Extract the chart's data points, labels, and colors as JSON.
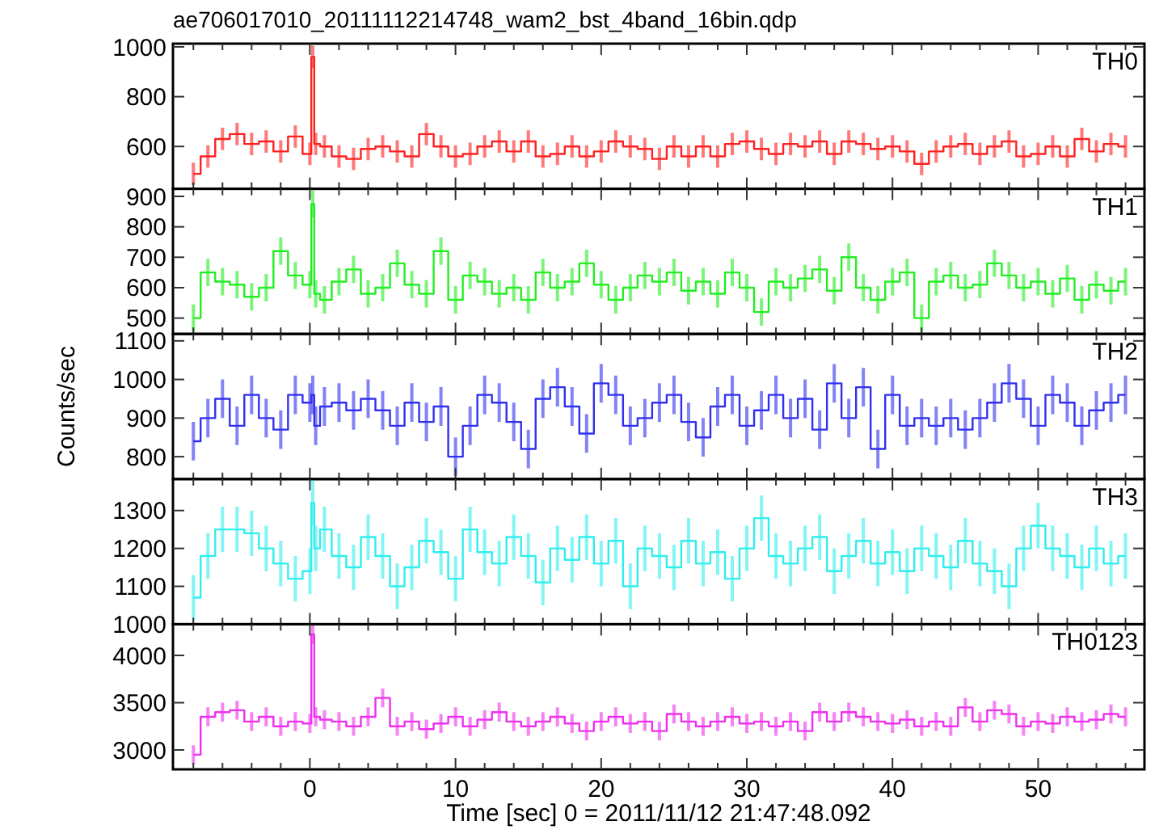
{
  "chart_data": [
    {
      "type": "step",
      "title": "ae706017010_20111112214748_wam2_bst_4band_16bin.qdp",
      "tick_labels": "y",
      "xlim": [
        -9.4,
        57.3
      ],
      "ylim": [
        430,
        1013
      ],
      "yticks": [
        600,
        800,
        1000
      ],
      "xticks": [
        {
          "value": -8,
          "label": null
        },
        {
          "value": -6,
          "label": null
        },
        {
          "value": -4,
          "label": null
        },
        {
          "value": -2,
          "label": null
        },
        0,
        {
          "value": 2,
          "label": null
        },
        {
          "value": 4,
          "label": null
        },
        {
          "value": 6,
          "label": null
        },
        {
          "value": 8,
          "label": null
        },
        10,
        {
          "value": 12,
          "label": null
        },
        {
          "value": 14,
          "label": null
        },
        {
          "value": 16,
          "label": null
        },
        {
          "value": 18,
          "label": null
        },
        20,
        {
          "value": 22,
          "label": null
        },
        {
          "value": 24,
          "label": null
        },
        {
          "value": 26,
          "label": null
        },
        {
          "value": 28,
          "label": null
        },
        30,
        {
          "value": 32,
          "label": null
        },
        {
          "value": 34,
          "label": null
        },
        {
          "value": 36,
          "label": null
        },
        {
          "value": 38,
          "label": null
        },
        40,
        {
          "value": 42,
          "label": null
        },
        {
          "value": 44,
          "label": null
        },
        {
          "value": 46,
          "label": null
        },
        {
          "value": 48,
          "label": null
        },
        50,
        {
          "value": 52,
          "label": null
        },
        {
          "value": 54,
          "label": null
        },
        {
          "value": 56,
          "label": null
        }
      ],
      "x": [
        -8,
        -7,
        -6,
        -5,
        -4,
        -3,
        -2,
        -1,
        0,
        0.2,
        0.4,
        1,
        2,
        3,
        4,
        5,
        6,
        7,
        8,
        9,
        10,
        11,
        12,
        13,
        14,
        15,
        16,
        17,
        18,
        19,
        20,
        21,
        22,
        23,
        24,
        25,
        26,
        27,
        28,
        29,
        30,
        31,
        32,
        33,
        34,
        35,
        36,
        37,
        38,
        39,
        40,
        41,
        42,
        43,
        44,
        45,
        46,
        47,
        48,
        49,
        50,
        51,
        52,
        53,
        54,
        55,
        56
      ],
      "series": [
        {
          "name": "TH0",
          "color": "#ff2020",
          "values": [
            490,
            560,
            630,
            650,
            610,
            620,
            580,
            640,
            570,
            960,
            610,
            600,
            560,
            550,
            590,
            600,
            580,
            560,
            650,
            600,
            560,
            570,
            600,
            620,
            580,
            620,
            560,
            570,
            600,
            560,
            580,
            620,
            600,
            590,
            550,
            600,
            560,
            600,
            560,
            610,
            620,
            590,
            570,
            610,
            600,
            620,
            570,
            620,
            610,
            590,
            600,
            580,
            530,
            580,
            600,
            610,
            570,
            600,
            620,
            560,
            570,
            600,
            560,
            630,
            580,
            610,
            600
          ],
          "errors": [
            45,
            45,
            45,
            45,
            45,
            45,
            45,
            45,
            45,
            45,
            45,
            45,
            45,
            45,
            45,
            45,
            45,
            45,
            45,
            45,
            45,
            45,
            45,
            45,
            45,
            45,
            45,
            45,
            45,
            45,
            45,
            45,
            45,
            45,
            45,
            45,
            45,
            45,
            45,
            45,
            45,
            45,
            45,
            45,
            45,
            45,
            45,
            45,
            45,
            45,
            45,
            45,
            45,
            45,
            45,
            45,
            45,
            45,
            45,
            45,
            45,
            45,
            45,
            45,
            45,
            45,
            45
          ]
        }
      ]
    },
    {
      "type": "step",
      "tick_labels": "y",
      "xlim": [
        -9.4,
        57.3
      ],
      "ylim": [
        448,
        925
      ],
      "yticks": [
        500,
        600,
        700,
        800,
        900
      ],
      "xticks": [
        {
          "value": -8,
          "label": null
        },
        {
          "value": -6,
          "label": null
        },
        {
          "value": -4,
          "label": null
        },
        {
          "value": -2,
          "label": null
        },
        0,
        {
          "value": 2,
          "label": null
        },
        {
          "value": 4,
          "label": null
        },
        {
          "value": 6,
          "label": null
        },
        {
          "value": 8,
          "label": null
        },
        10,
        {
          "value": 12,
          "label": null
        },
        {
          "value": 14,
          "label": null
        },
        {
          "value": 16,
          "label": null
        },
        {
          "value": 18,
          "label": null
        },
        20,
        {
          "value": 22,
          "label": null
        },
        {
          "value": 24,
          "label": null
        },
        {
          "value": 26,
          "label": null
        },
        {
          "value": 28,
          "label": null
        },
        30,
        {
          "value": 32,
          "label": null
        },
        {
          "value": 34,
          "label": null
        },
        {
          "value": 36,
          "label": null
        },
        {
          "value": 38,
          "label": null
        },
        40,
        {
          "value": 42,
          "label": null
        },
        {
          "value": 44,
          "label": null
        },
        {
          "value": 46,
          "label": null
        },
        {
          "value": 48,
          "label": null
        },
        50,
        {
          "value": 52,
          "label": null
        },
        {
          "value": 54,
          "label": null
        },
        {
          "value": 56,
          "label": null
        }
      ],
      "x": [
        -8,
        -7,
        -6,
        -5,
        -4,
        -3,
        -2,
        -1,
        0,
        0.2,
        0.4,
        1,
        2,
        3,
        4,
        5,
        6,
        7,
        8,
        9,
        10,
        11,
        12,
        13,
        14,
        15,
        16,
        17,
        18,
        19,
        20,
        21,
        22,
        23,
        24,
        25,
        26,
        27,
        28,
        29,
        30,
        31,
        32,
        33,
        34,
        35,
        36,
        37,
        38,
        39,
        40,
        41,
        42,
        43,
        44,
        45,
        46,
        47,
        48,
        49,
        50,
        51,
        52,
        53,
        54,
        55,
        56
      ],
      "series": [
        {
          "name": "TH1",
          "color": "#22ee22",
          "values": [
            500,
            650,
            620,
            610,
            570,
            600,
            720,
            640,
            610,
            875,
            580,
            560,
            620,
            660,
            580,
            600,
            680,
            610,
            580,
            720,
            560,
            640,
            620,
            580,
            600,
            560,
            650,
            600,
            620,
            680,
            610,
            560,
            600,
            640,
            620,
            650,
            590,
            620,
            580,
            650,
            600,
            520,
            620,
            600,
            630,
            660,
            590,
            700,
            600,
            560,
            620,
            650,
            500,
            620,
            640,
            600,
            610,
            680,
            640,
            600,
            620,
            580,
            630,
            560,
            610,
            590,
            620
          ],
          "errors": [
            45,
            45,
            45,
            45,
            45,
            45,
            45,
            45,
            45,
            45,
            45,
            45,
            45,
            45,
            45,
            45,
            45,
            45,
            45,
            45,
            45,
            45,
            45,
            45,
            45,
            45,
            45,
            45,
            45,
            45,
            45,
            45,
            45,
            45,
            45,
            45,
            45,
            45,
            45,
            45,
            45,
            45,
            45,
            45,
            45,
            45,
            45,
            45,
            45,
            45,
            45,
            45,
            45,
            45,
            45,
            45,
            45,
            45,
            45,
            45,
            45,
            45,
            45,
            45,
            45,
            45,
            45
          ]
        }
      ]
    },
    {
      "type": "step",
      "tick_labels": "y",
      "ylabel": "Counts/sec",
      "xlim": [
        -9.4,
        57.3
      ],
      "ylim": [
        742,
        1118
      ],
      "yticks": [
        800,
        900,
        1000,
        1100
      ],
      "xticks": [
        {
          "value": -8,
          "label": null
        },
        {
          "value": -6,
          "label": null
        },
        {
          "value": -4,
          "label": null
        },
        {
          "value": -2,
          "label": null
        },
        0,
        {
          "value": 2,
          "label": null
        },
        {
          "value": 4,
          "label": null
        },
        {
          "value": 6,
          "label": null
        },
        {
          "value": 8,
          "label": null
        },
        10,
        {
          "value": 12,
          "label": null
        },
        {
          "value": 14,
          "label": null
        },
        {
          "value": 16,
          "label": null
        },
        {
          "value": 18,
          "label": null
        },
        20,
        {
          "value": 22,
          "label": null
        },
        {
          "value": 24,
          "label": null
        },
        {
          "value": 26,
          "label": null
        },
        {
          "value": 28,
          "label": null
        },
        30,
        {
          "value": 32,
          "label": null
        },
        {
          "value": 34,
          "label": null
        },
        {
          "value": 36,
          "label": null
        },
        {
          "value": 38,
          "label": null
        },
        40,
        {
          "value": 42,
          "label": null
        },
        {
          "value": 44,
          "label": null
        },
        {
          "value": 46,
          "label": null
        },
        {
          "value": 48,
          "label": null
        },
        50,
        {
          "value": 52,
          "label": null
        },
        {
          "value": 54,
          "label": null
        },
        {
          "value": 56,
          "label": null
        }
      ],
      "x": [
        -8,
        -7,
        -6,
        -5,
        -4,
        -3,
        -2,
        -1,
        0,
        0.2,
        0.4,
        1,
        2,
        3,
        4,
        5,
        6,
        7,
        8,
        9,
        10,
        11,
        12,
        13,
        14,
        15,
        16,
        17,
        18,
        19,
        20,
        21,
        22,
        23,
        24,
        25,
        26,
        27,
        28,
        29,
        30,
        31,
        32,
        33,
        34,
        35,
        36,
        37,
        38,
        39,
        40,
        41,
        42,
        43,
        44,
        45,
        46,
        47,
        48,
        49,
        50,
        51,
        52,
        53,
        54,
        55,
        56
      ],
      "series": [
        {
          "name": "TH2",
          "color": "#3030ee",
          "values": [
            840,
            900,
            950,
            880,
            960,
            900,
            870,
            960,
            940,
            960,
            880,
            930,
            940,
            920,
            950,
            920,
            880,
            940,
            890,
            930,
            800,
            880,
            960,
            940,
            890,
            820,
            950,
            980,
            930,
            860,
            990,
            960,
            880,
            900,
            940,
            960,
            890,
            850,
            930,
            960,
            880,
            920,
            960,
            900,
            950,
            870,
            990,
            900,
            980,
            820,
            960,
            880,
            900,
            880,
            900,
            870,
            900,
            940,
            990,
            950,
            880,
            960,
            940,
            880,
            920,
            940,
            960
          ],
          "errors": [
            50,
            50,
            50,
            50,
            50,
            50,
            50,
            50,
            50,
            50,
            50,
            50,
            50,
            50,
            50,
            50,
            50,
            50,
            50,
            50,
            50,
            50,
            50,
            50,
            50,
            50,
            50,
            50,
            50,
            50,
            50,
            50,
            50,
            50,
            50,
            50,
            50,
            50,
            50,
            50,
            50,
            50,
            50,
            50,
            50,
            50,
            50,
            50,
            50,
            50,
            50,
            50,
            50,
            50,
            50,
            50,
            50,
            50,
            50,
            50,
            50,
            50,
            50,
            50,
            50,
            50,
            50
          ]
        }
      ]
    },
    {
      "type": "step",
      "tick_labels": "y",
      "xlim": [
        -9.4,
        57.3
      ],
      "ylim": [
        1000,
        1383
      ],
      "yticks": [
        1000,
        1100,
        1200,
        1300
      ],
      "xticks": [
        {
          "value": -8,
          "label": null
        },
        {
          "value": -6,
          "label": null
        },
        {
          "value": -4,
          "label": null
        },
        {
          "value": -2,
          "label": null
        },
        0,
        {
          "value": 2,
          "label": null
        },
        {
          "value": 4,
          "label": null
        },
        {
          "value": 6,
          "label": null
        },
        {
          "value": 8,
          "label": null
        },
        10,
        {
          "value": 12,
          "label": null
        },
        {
          "value": 14,
          "label": null
        },
        {
          "value": 16,
          "label": null
        },
        {
          "value": 18,
          "label": null
        },
        20,
        {
          "value": 22,
          "label": null
        },
        {
          "value": 24,
          "label": null
        },
        {
          "value": 26,
          "label": null
        },
        {
          "value": 28,
          "label": null
        },
        30,
        {
          "value": 32,
          "label": null
        },
        {
          "value": 34,
          "label": null
        },
        {
          "value": 36,
          "label": null
        },
        {
          "value": 38,
          "label": null
        },
        40,
        {
          "value": 42,
          "label": null
        },
        {
          "value": 44,
          "label": null
        },
        {
          "value": 46,
          "label": null
        },
        {
          "value": 48,
          "label": null
        },
        50,
        {
          "value": 52,
          "label": null
        },
        {
          "value": 54,
          "label": null
        },
        {
          "value": 56,
          "label": null
        }
      ],
      "x": [
        -8,
        -7,
        -6,
        -5,
        -4,
        -3,
        -2,
        -1,
        0,
        0.2,
        0.4,
        1,
        2,
        3,
        4,
        5,
        6,
        7,
        8,
        9,
        10,
        11,
        12,
        13,
        14,
        15,
        16,
        17,
        18,
        19,
        20,
        21,
        22,
        23,
        24,
        25,
        26,
        27,
        28,
        29,
        30,
        31,
        32,
        33,
        34,
        35,
        36,
        37,
        38,
        39,
        40,
        41,
        42,
        43,
        44,
        45,
        46,
        47,
        48,
        49,
        50,
        51,
        52,
        53,
        54,
        55,
        56
      ],
      "series": [
        {
          "name": "TH3",
          "color": "#30eeee",
          "values": [
            1070,
            1180,
            1250,
            1250,
            1240,
            1200,
            1160,
            1120,
            1140,
            1320,
            1200,
            1250,
            1180,
            1150,
            1230,
            1180,
            1100,
            1150,
            1220,
            1190,
            1120,
            1250,
            1190,
            1160,
            1230,
            1180,
            1110,
            1200,
            1170,
            1230,
            1160,
            1220,
            1100,
            1200,
            1180,
            1150,
            1220,
            1160,
            1190,
            1120,
            1200,
            1280,
            1180,
            1160,
            1200,
            1230,
            1140,
            1180,
            1220,
            1160,
            1190,
            1140,
            1200,
            1180,
            1150,
            1220,
            1160,
            1140,
            1100,
            1200,
            1260,
            1200,
            1180,
            1150,
            1200,
            1160,
            1180
          ],
          "errors": [
            60,
            60,
            60,
            60,
            60,
            60,
            60,
            60,
            60,
            60,
            60,
            60,
            60,
            60,
            60,
            60,
            60,
            60,
            60,
            60,
            60,
            60,
            60,
            60,
            60,
            60,
            60,
            60,
            60,
            60,
            60,
            60,
            60,
            60,
            60,
            60,
            60,
            60,
            60,
            60,
            60,
            60,
            60,
            60,
            60,
            60,
            60,
            60,
            60,
            60,
            60,
            60,
            60,
            60,
            60,
            60,
            60,
            60,
            60,
            60,
            60,
            60,
            60,
            60,
            60,
            60,
            60
          ]
        }
      ]
    },
    {
      "type": "step",
      "xlabel": "Time [sec] 0 = 2011/11/12 21:47:48.092",
      "xlim": [
        -9.4,
        57.3
      ],
      "ylim": [
        2795,
        4330
      ],
      "yticks": [
        3000,
        3500,
        4000
      ],
      "xticks": [
        {
          "value": -8,
          "label": null
        },
        {
          "value": -6,
          "label": null
        },
        {
          "value": -4,
          "label": null
        },
        {
          "value": -2,
          "label": null
        },
        0,
        {
          "value": 2,
          "label": null
        },
        {
          "value": 4,
          "label": null
        },
        {
          "value": 6,
          "label": null
        },
        {
          "value": 8,
          "label": null
        },
        10,
        {
          "value": 12,
          "label": null
        },
        {
          "value": 14,
          "label": null
        },
        {
          "value": 16,
          "label": null
        },
        {
          "value": 18,
          "label": null
        },
        20,
        {
          "value": 22,
          "label": null
        },
        {
          "value": 24,
          "label": null
        },
        {
          "value": 26,
          "label": null
        },
        {
          "value": 28,
          "label": null
        },
        30,
        {
          "value": 32,
          "label": null
        },
        {
          "value": 34,
          "label": null
        },
        {
          "value": 36,
          "label": null
        },
        {
          "value": 38,
          "label": null
        },
        40,
        {
          "value": 42,
          "label": null
        },
        {
          "value": 44,
          "label": null
        },
        {
          "value": 46,
          "label": null
        },
        {
          "value": 48,
          "label": null
        },
        50,
        {
          "value": 52,
          "label": null
        },
        {
          "value": 54,
          "label": null
        },
        {
          "value": 56,
          "label": null
        }
      ],
      "x": [
        -8,
        -7,
        -6,
        -5,
        -4,
        -3,
        -2,
        -1,
        0,
        0.2,
        0.4,
        1,
        2,
        3,
        4,
        5,
        6,
        7,
        8,
        9,
        10,
        11,
        12,
        13,
        14,
        15,
        16,
        17,
        18,
        19,
        20,
        21,
        22,
        23,
        24,
        25,
        26,
        27,
        28,
        29,
        30,
        31,
        32,
        33,
        34,
        35,
        36,
        37,
        38,
        39,
        40,
        41,
        42,
        43,
        44,
        45,
        46,
        47,
        48,
        49,
        50,
        51,
        52,
        53,
        54,
        55,
        56
      ],
      "series": [
        {
          "name": "TH0123",
          "color": "#ee30ee",
          "values": [
            2950,
            3350,
            3400,
            3420,
            3300,
            3350,
            3250,
            3300,
            3280,
            4220,
            3350,
            3320,
            3300,
            3250,
            3350,
            3550,
            3250,
            3300,
            3220,
            3280,
            3350,
            3250,
            3320,
            3400,
            3300,
            3250,
            3300,
            3350,
            3280,
            3200,
            3300,
            3350,
            3280,
            3300,
            3200,
            3380,
            3300,
            3250,
            3300,
            3350,
            3280,
            3300,
            3250,
            3300,
            3200,
            3400,
            3300,
            3400,
            3350,
            3300,
            3280,
            3320,
            3250,
            3300,
            3250,
            3450,
            3300,
            3420,
            3380,
            3250,
            3300,
            3280,
            3350,
            3300,
            3320,
            3380,
            3350
          ],
          "errors": [
            100,
            100,
            100,
            100,
            100,
            100,
            100,
            100,
            100,
            100,
            100,
            100,
            100,
            100,
            100,
            100,
            100,
            100,
            100,
            100,
            100,
            100,
            100,
            100,
            100,
            100,
            100,
            100,
            100,
            100,
            100,
            100,
            100,
            100,
            100,
            100,
            100,
            100,
            100,
            100,
            100,
            100,
            100,
            100,
            100,
            100,
            100,
            100,
            100,
            100,
            100,
            100,
            100,
            100,
            100,
            100,
            100,
            100,
            100,
            100,
            100,
            100,
            100,
            100,
            100,
            100,
            100
          ]
        }
      ]
    }
  ]
}
